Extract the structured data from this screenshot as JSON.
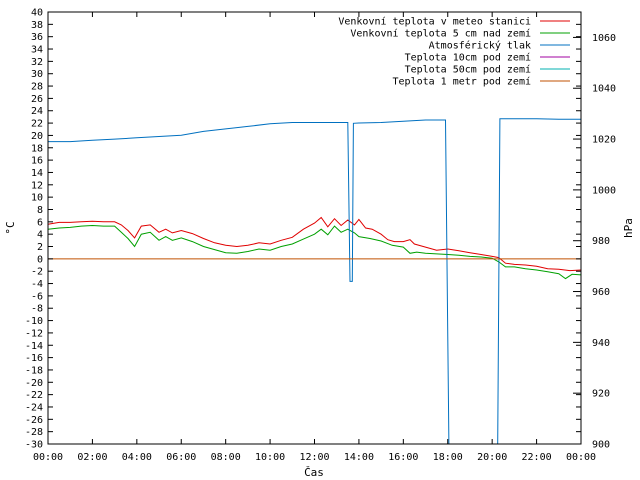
{
  "chart_data": {
    "type": "line",
    "title": "",
    "xlabel": "Čas",
    "ylabel": "°C",
    "y2label": "hPa",
    "xlim": [
      0,
      24
    ],
    "ylim": [
      -30,
      40
    ],
    "y2lim": [
      900,
      1070
    ],
    "x_ticks": [
      "00:00",
      "02:00",
      "04:00",
      "06:00",
      "08:00",
      "10:00",
      "12:00",
      "14:00",
      "16:00",
      "18:00",
      "20:00",
      "22:00",
      "00:00"
    ],
    "y_ticks": [
      40,
      38,
      36,
      34,
      32,
      30,
      28,
      26,
      24,
      22,
      20,
      18,
      16,
      14,
      12,
      10,
      8,
      6,
      4,
      2,
      0,
      -2,
      -4,
      -6,
      -8,
      -10,
      -12,
      -14,
      -16,
      -18,
      -20,
      -22,
      -24,
      -26,
      -28,
      -30
    ],
    "y2_ticks": [
      1060,
      1040,
      1020,
      1000,
      980,
      960,
      940,
      920,
      900
    ],
    "grid": false,
    "legend_position": "top-right",
    "series": [
      {
        "name": "Venkovní teplota v meteo stanici",
        "axis": "y",
        "color": "#e00000",
        "points": [
          [
            0,
            5.6
          ],
          [
            0.5,
            5.9
          ],
          [
            1,
            5.9
          ],
          [
            1.5,
            6.0
          ],
          [
            2,
            6.1
          ],
          [
            2.5,
            6.0
          ],
          [
            3,
            6.0
          ],
          [
            3.3,
            5.5
          ],
          [
            3.6,
            4.6
          ],
          [
            3.9,
            3.4
          ],
          [
            4.2,
            5.3
          ],
          [
            4.6,
            5.5
          ],
          [
            5,
            4.3
          ],
          [
            5.3,
            4.8
          ],
          [
            5.6,
            4.2
          ],
          [
            6,
            4.6
          ],
          [
            6.5,
            4.1
          ],
          [
            7,
            3.3
          ],
          [
            7.5,
            2.6
          ],
          [
            8,
            2.2
          ],
          [
            8.5,
            2.0
          ],
          [
            9,
            2.2
          ],
          [
            9.5,
            2.6
          ],
          [
            10,
            2.4
          ],
          [
            10.5,
            3.0
          ],
          [
            11,
            3.5
          ],
          [
            11.5,
            4.8
          ],
          [
            12,
            5.8
          ],
          [
            12.3,
            6.7
          ],
          [
            12.6,
            5.2
          ],
          [
            12.9,
            6.5
          ],
          [
            13.2,
            5.4
          ],
          [
            13.5,
            6.3
          ],
          [
            13.8,
            5.5
          ],
          [
            14,
            6.4
          ],
          [
            14.3,
            5.0
          ],
          [
            14.6,
            4.8
          ],
          [
            15,
            4.0
          ],
          [
            15.3,
            3.1
          ],
          [
            15.6,
            2.8
          ],
          [
            16,
            2.8
          ],
          [
            16.3,
            3.1
          ],
          [
            16.5,
            2.4
          ],
          [
            17,
            1.9
          ],
          [
            17.5,
            1.4
          ],
          [
            18,
            1.6
          ],
          [
            18.5,
            1.3
          ],
          [
            19,
            1.0
          ],
          [
            19.5,
            0.7
          ],
          [
            20,
            0.4
          ],
          [
            20.3,
            0.2
          ],
          [
            20.6,
            -0.7
          ],
          [
            21,
            -0.9
          ],
          [
            21.5,
            -1.0
          ],
          [
            22,
            -1.2
          ],
          [
            22.5,
            -1.6
          ],
          [
            23,
            -1.7
          ],
          [
            23.5,
            -1.9
          ],
          [
            24,
            -1.8
          ]
        ]
      },
      {
        "name": "Venkovní teplota 5 cm nad zemí",
        "axis": "y",
        "color": "#00a000",
        "points": [
          [
            0,
            4.8
          ],
          [
            0.5,
            5.0
          ],
          [
            1,
            5.1
          ],
          [
            1.5,
            5.3
          ],
          [
            2,
            5.4
          ],
          [
            2.5,
            5.3
          ],
          [
            3,
            5.3
          ],
          [
            3.3,
            4.3
          ],
          [
            3.6,
            3.3
          ],
          [
            3.9,
            2.0
          ],
          [
            4.2,
            4.0
          ],
          [
            4.6,
            4.3
          ],
          [
            5,
            3.0
          ],
          [
            5.3,
            3.6
          ],
          [
            5.6,
            3.0
          ],
          [
            6,
            3.4
          ],
          [
            6.5,
            2.8
          ],
          [
            7,
            2.0
          ],
          [
            7.5,
            1.5
          ],
          [
            8,
            1.0
          ],
          [
            8.5,
            0.9
          ],
          [
            9,
            1.2
          ],
          [
            9.5,
            1.6
          ],
          [
            10,
            1.4
          ],
          [
            10.5,
            2.0
          ],
          [
            11,
            2.4
          ],
          [
            11.5,
            3.2
          ],
          [
            12,
            4.0
          ],
          [
            12.3,
            4.8
          ],
          [
            12.6,
            3.9
          ],
          [
            12.9,
            5.3
          ],
          [
            13.2,
            4.3
          ],
          [
            13.5,
            4.8
          ],
          [
            13.8,
            4.2
          ],
          [
            14,
            3.6
          ],
          [
            14.5,
            3.3
          ],
          [
            15,
            2.9
          ],
          [
            15.5,
            2.2
          ],
          [
            16,
            1.9
          ],
          [
            16.3,
            0.9
          ],
          [
            16.6,
            1.1
          ],
          [
            17,
            0.9
          ],
          [
            17.5,
            0.8
          ],
          [
            18,
            0.7
          ],
          [
            18.5,
            0.6
          ],
          [
            19,
            0.4
          ],
          [
            19.5,
            0.3
          ],
          [
            20,
            0.1
          ],
          [
            20.3,
            -0.5
          ],
          [
            20.6,
            -1.3
          ],
          [
            21,
            -1.3
          ],
          [
            21.5,
            -1.6
          ],
          [
            22,
            -1.8
          ],
          [
            22.5,
            -2.1
          ],
          [
            23,
            -2.4
          ],
          [
            23.3,
            -3.2
          ],
          [
            23.6,
            -2.5
          ],
          [
            24,
            -2.6
          ]
        ]
      },
      {
        "name": "Atmosférický tlak",
        "axis": "y2",
        "color": "#0070c0",
        "points": [
          [
            0,
            1019
          ],
          [
            1,
            1019
          ],
          [
            2,
            1019.5
          ],
          [
            3,
            1020
          ],
          [
            4,
            1020.5
          ],
          [
            5,
            1021
          ],
          [
            6,
            1021.5
          ],
          [
            7,
            1023
          ],
          [
            8,
            1024
          ],
          [
            9,
            1025
          ],
          [
            10,
            1026
          ],
          [
            11,
            1026.5
          ],
          [
            12,
            1026.5
          ],
          [
            13,
            1026.5
          ],
          [
            13.5,
            1026.5
          ],
          [
            13.6,
            964
          ],
          [
            13.7,
            964
          ],
          [
            13.75,
            1026.2
          ],
          [
            14,
            1026.3
          ],
          [
            15,
            1026.5
          ],
          [
            16,
            1027
          ],
          [
            17,
            1027.5
          ],
          [
            17.9,
            1027.5
          ],
          [
            18.05,
            900
          ],
          [
            20.25,
            900
          ],
          [
            20.35,
            1028
          ],
          [
            21,
            1028
          ],
          [
            22,
            1028
          ],
          [
            23,
            1027.8
          ],
          [
            24,
            1027.8
          ]
        ]
      },
      {
        "name": "Teplota 10cm pod zemí",
        "axis": "y",
        "color": "#a000a0",
        "points": []
      },
      {
        "name": "Teplota 50cm pod zemí",
        "axis": "y",
        "color": "#00b0b0",
        "points": []
      },
      {
        "name": "Teplota 1 metr pod zemí",
        "axis": "y",
        "color": "#c05000",
        "points": [
          [
            0,
            0
          ],
          [
            24,
            0
          ]
        ]
      }
    ]
  }
}
